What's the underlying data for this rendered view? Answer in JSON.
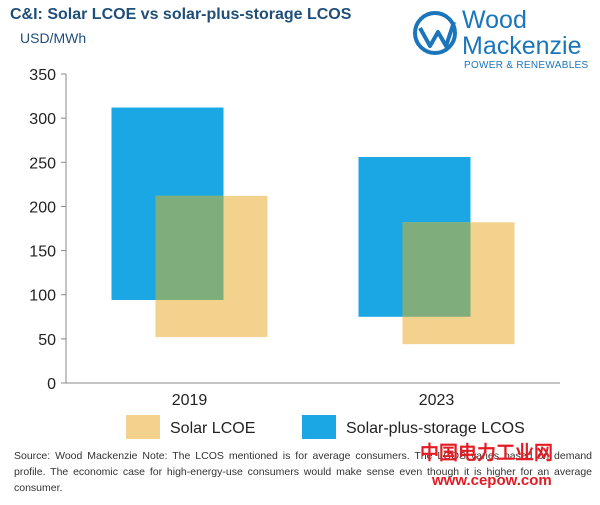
{
  "header": {
    "title": "C&I: Solar LCOE vs solar-plus-storage LCOS",
    "unit_label": "USD/MWh"
  },
  "logo": {
    "line1": "Wood",
    "line2": "Mackenzie",
    "tagline": "POWER & RENEWABLES",
    "color": "#1b75bb"
  },
  "chart_data": {
    "type": "bar",
    "categories": [
      "2019",
      "2023"
    ],
    "series": [
      {
        "name": "Solar LCOE",
        "color": "#f2d28c",
        "low": [
          52,
          44
        ],
        "high": [
          212,
          182
        ]
      },
      {
        "name": "Solar-plus-storage LCOS",
        "color": "#1aa7e3",
        "low": [
          94,
          75
        ],
        "high": [
          312,
          256
        ]
      }
    ],
    "overlap_color": "#7fae7c",
    "ylim": [
      0,
      350
    ],
    "yticks": [
      "0",
      "50",
      "100",
      "150",
      "200",
      "250",
      "300",
      "350"
    ],
    "ytick_values": [
      0,
      50,
      100,
      150,
      200,
      250,
      300,
      350
    ],
    "grid": false,
    "legend_position": "bottom"
  },
  "footer": {
    "source": "Source: Wood Mackenzie Note: The LCOS mentioned is for average consumers. The LCOS varies based on demand profile. The economic case for high-energy-use consumers would make sense even though it is higher for an average consumer."
  },
  "watermark": {
    "text": "中国电力工业网",
    "url": "www.cepow.com",
    "color": "#e31b23"
  }
}
